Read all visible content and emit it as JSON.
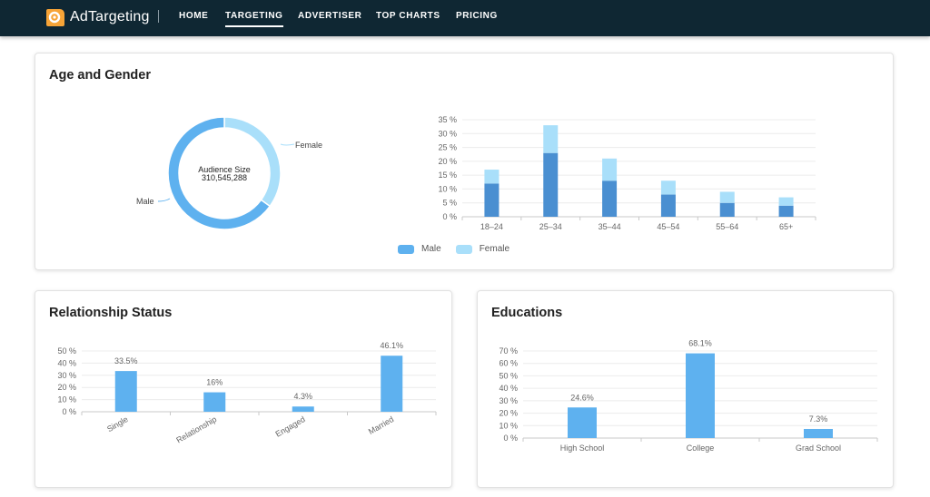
{
  "app": {
    "brand": "AdTargeting",
    "nav": [
      "HOME",
      "TARGETING",
      "ADVERTISER",
      "TOP CHARTS",
      "PRICING"
    ],
    "active_nav": "TARGETING"
  },
  "colors": {
    "male": "#4a8fd1",
    "female": "#a9dffa",
    "bar": "#5eb1ef",
    "navbar": "#0f2733",
    "logo": "#f7a437"
  },
  "age_gender": {
    "title": "Age and Gender",
    "donut": {
      "center_label": "Audience Size",
      "center_value": "310,545,288",
      "slice_labels": [
        "Female",
        "Male"
      ]
    },
    "legend": [
      "Male",
      "Female"
    ]
  },
  "relationship": {
    "title": "Relationship Status"
  },
  "educations": {
    "title": "Educations"
  },
  "chart_data": [
    {
      "type": "pie",
      "title": "",
      "categories": [
        "Female",
        "Male"
      ],
      "values": [
        35,
        65
      ]
    },
    {
      "type": "bar",
      "stacked": true,
      "title": "",
      "categories": [
        "18–24",
        "25–34",
        "35–44",
        "45–54",
        "55–64",
        "65+"
      ],
      "series": [
        {
          "name": "Male",
          "values": [
            12,
            23,
            13,
            8,
            5,
            4
          ]
        },
        {
          "name": "Female",
          "values": [
            5,
            10,
            8,
            5,
            4,
            3
          ]
        }
      ],
      "ylim": [
        0,
        35
      ],
      "yticks": [
        "0 %",
        "5 %",
        "10 %",
        "15 %",
        "20 %",
        "25 %",
        "30 %",
        "35 %"
      ],
      "legend": "bottom-center",
      "grid": true
    },
    {
      "type": "bar",
      "title": "",
      "categories": [
        "Single",
        "Relationship",
        "Engaged",
        "Married"
      ],
      "values": [
        33.5,
        16,
        4.3,
        46.1
      ],
      "data_labels": [
        "33.5%",
        "16%",
        "4.3%",
        "46.1%"
      ],
      "ylim": [
        0,
        50
      ],
      "yticks": [
        "0 %",
        "10 %",
        "20 %",
        "30 %",
        "40 %",
        "50 %"
      ],
      "grid": true
    },
    {
      "type": "bar",
      "title": "",
      "categories": [
        "High School",
        "College",
        "Grad School"
      ],
      "values": [
        24.6,
        68.1,
        7.3
      ],
      "data_labels": [
        "24.6%",
        "68.1%",
        "7.3%"
      ],
      "ylim": [
        0,
        70
      ],
      "yticks": [
        "0 %",
        "10 %",
        "20 %",
        "30 %",
        "40 %",
        "50 %",
        "60 %",
        "70 %"
      ],
      "grid": true
    }
  ]
}
